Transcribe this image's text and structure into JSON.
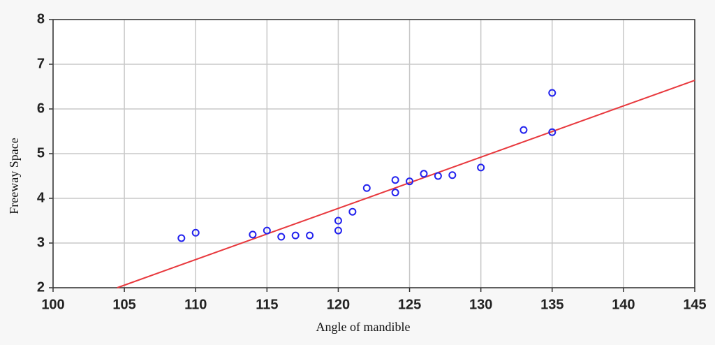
{
  "chart_data": {
    "type": "scatter",
    "x_label": "Angle of mandible",
    "y_label": "Freeway Space",
    "series": [
      {
        "color": "#2222ee",
        "x": [
          109,
          110,
          114,
          115,
          116,
          117,
          118,
          120,
          120,
          121,
          122,
          124,
          124,
          125,
          126,
          127,
          128,
          130,
          133,
          135,
          135
        ],
        "values": [
          3.11,
          3.23,
          3.19,
          3.28,
          3.14,
          3.17,
          3.17,
          3.5,
          3.28,
          3.7,
          4.23,
          4.41,
          4.13,
          4.38,
          4.55,
          4.5,
          4.52,
          4.69,
          5.53,
          6.36,
          5.48
        ]
      }
    ],
    "trend_line": {
      "color": "#e8383d",
      "x": [
        104.5,
        145
      ],
      "values": [
        2,
        6.64
      ]
    },
    "xlim": [
      100,
      145
    ],
    "xticks": [
      100,
      105,
      110,
      115,
      120,
      125,
      130,
      135,
      140,
      145
    ],
    "ylim": [
      2,
      8
    ],
    "yticks": [
      2,
      3,
      4,
      5,
      6,
      7,
      8
    ],
    "grid": true
  }
}
